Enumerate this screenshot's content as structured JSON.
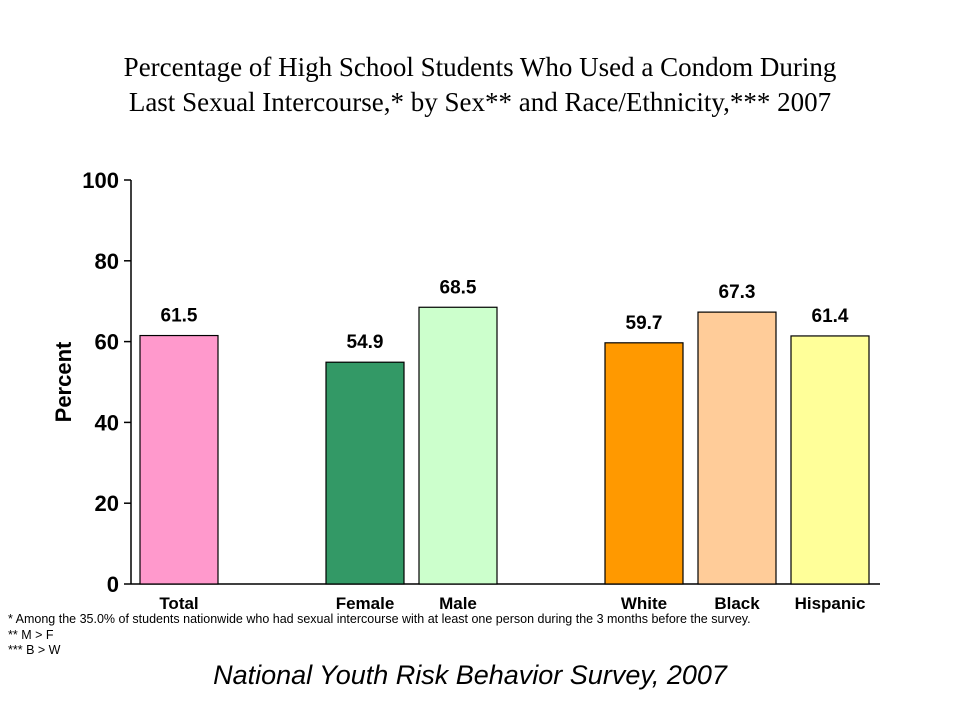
{
  "chart_data": {
    "type": "bar",
    "title_lines": [
      "Percentage of High School Students Who Used a Condom During",
      "Last Sexual Intercourse,* by Sex** and Race/Ethnicity,*** 2007"
    ],
    "ylabel": "Percent",
    "xlabel": "",
    "ylim": [
      0,
      100
    ],
    "yticks": [
      0,
      20,
      40,
      60,
      80,
      100
    ],
    "categories": [
      "Total",
      "Female",
      "Male",
      "White",
      "Black",
      "Hispanic"
    ],
    "values": [
      61.5,
      54.9,
      68.5,
      59.7,
      67.3,
      61.4
    ],
    "value_labels": [
      "61.5",
      "54.9",
      "68.5",
      "59.7",
      "67.3",
      "61.4"
    ],
    "colors": [
      "#ff99cc",
      "#339966",
      "#ccffcc",
      "#ff9900",
      "#ffcc99",
      "#ffff99"
    ],
    "grid": false,
    "legend": "none"
  },
  "footnotes": [
    "* Among the 35.0% of students nationwide who had sexual intercourse with at least one person during the 3 months before the survey.",
    "** M > F",
    "*** B > W"
  ],
  "source": "National Youth Risk Behavior Survey, 2007"
}
